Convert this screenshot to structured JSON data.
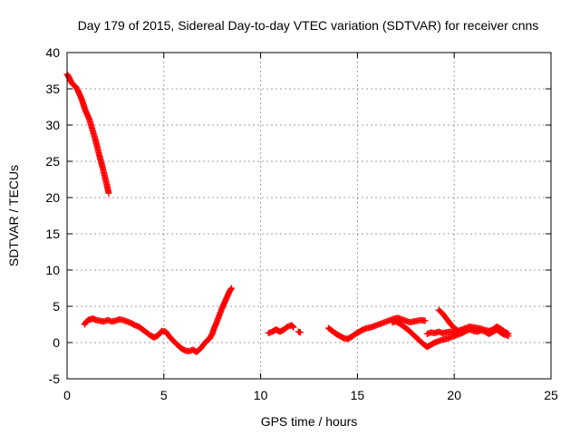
{
  "chart_data": {
    "type": "scatter",
    "title": "Day 179 of 2015, Sidereal Day-to-day VTEC variation (SDTVAR) for receiver cnns",
    "xlabel": "GPS time / hours",
    "ylabel": "SDTVAR / TECUs",
    "xlim": [
      0,
      25
    ],
    "ylim": [
      -5,
      40
    ],
    "xticks": [
      0,
      5,
      10,
      15,
      20,
      25
    ],
    "yticks": [
      -5,
      0,
      5,
      10,
      15,
      20,
      25,
      30,
      35,
      40
    ],
    "grid": true,
    "marker": "plus",
    "color": "#ff0000",
    "series": [
      {
        "name": "SDTVAR",
        "segments": [
          [
            [
              0.0,
              37.0
            ],
            [
              0.1,
              36.6
            ],
            [
              0.2,
              36.0
            ],
            [
              0.3,
              35.6
            ],
            [
              0.45,
              35.3
            ],
            [
              0.55,
              34.8
            ],
            [
              0.65,
              34.2
            ],
            [
              0.75,
              33.6
            ],
            [
              0.85,
              32.8
            ],
            [
              0.95,
              32.0
            ],
            [
              1.05,
              31.4
            ],
            [
              1.15,
              30.8
            ],
            [
              1.25,
              29.9
            ],
            [
              1.35,
              29.0
            ],
            [
              1.45,
              28.1
            ],
            [
              1.55,
              27.1
            ],
            [
              1.65,
              26.0
            ],
            [
              1.75,
              25.0
            ],
            [
              1.85,
              24.0
            ],
            [
              1.95,
              22.9
            ],
            [
              2.05,
              21.8
            ],
            [
              2.15,
              20.6
            ]
          ],
          [
            [
              0.9,
              2.5
            ],
            [
              1.0,
              2.9
            ],
            [
              1.1,
              3.1
            ],
            [
              1.2,
              3.2
            ],
            [
              1.35,
              3.3
            ],
            [
              1.5,
              3.1
            ],
            [
              1.7,
              3.0
            ],
            [
              1.9,
              2.9
            ],
            [
              2.1,
              3.1
            ],
            [
              2.3,
              2.9
            ],
            [
              2.5,
              3.0
            ],
            [
              2.7,
              3.2
            ],
            [
              2.9,
              3.1
            ],
            [
              3.1,
              2.9
            ],
            [
              3.3,
              2.7
            ],
            [
              3.5,
              2.4
            ],
            [
              3.7,
              2.2
            ],
            [
              3.9,
              1.8
            ],
            [
              4.1,
              1.4
            ],
            [
              4.3,
              1.0
            ],
            [
              4.5,
              0.7
            ],
            [
              4.7,
              1.0
            ],
            [
              4.9,
              1.6
            ],
            [
              5.1,
              1.5
            ],
            [
              5.3,
              0.8
            ],
            [
              5.5,
              0.2
            ],
            [
              5.7,
              -0.3
            ],
            [
              5.9,
              -0.8
            ],
            [
              6.1,
              -1.1
            ],
            [
              6.3,
              -1.2
            ],
            [
              6.5,
              -1.0
            ],
            [
              6.7,
              -1.3
            ],
            [
              6.9,
              -0.8
            ],
            [
              7.05,
              -0.3
            ],
            [
              7.2,
              0.2
            ],
            [
              7.35,
              0.5
            ],
            [
              7.5,
              1.2
            ],
            [
              7.6,
              2.0
            ],
            [
              7.7,
              2.6
            ],
            [
              7.8,
              3.3
            ],
            [
              7.9,
              4.0
            ],
            [
              8.0,
              4.7
            ],
            [
              8.1,
              5.3
            ],
            [
              8.2,
              5.9
            ],
            [
              8.3,
              6.5
            ],
            [
              8.4,
              7.1
            ],
            [
              8.5,
              7.5
            ]
          ],
          [
            [
              10.4,
              1.3
            ],
            [
              10.6,
              1.5
            ],
            [
              10.8,
              1.8
            ],
            [
              11.0,
              1.5
            ],
            [
              11.2,
              1.8
            ],
            [
              11.4,
              2.2
            ],
            [
              11.6,
              2.4
            ],
            [
              11.7,
              2.1
            ]
          ],
          [
            [
              11.95,
              1.5
            ],
            [
              12.05,
              1.4
            ]
          ],
          [
            [
              13.5,
              2.0
            ],
            [
              13.7,
              1.6
            ],
            [
              13.9,
              1.2
            ],
            [
              14.1,
              0.9
            ],
            [
              14.3,
              0.6
            ],
            [
              14.5,
              0.5
            ],
            [
              14.7,
              0.8
            ],
            [
              14.9,
              1.2
            ],
            [
              15.1,
              1.5
            ],
            [
              15.3,
              1.8
            ],
            [
              15.5,
              2.0
            ],
            [
              15.7,
              2.1
            ],
            [
              15.9,
              2.3
            ],
            [
              16.1,
              2.5
            ],
            [
              16.3,
              2.7
            ],
            [
              16.5,
              2.9
            ],
            [
              16.7,
              3.1
            ],
            [
              16.9,
              3.3
            ],
            [
              17.1,
              3.4
            ],
            [
              17.3,
              3.2
            ],
            [
              17.5,
              3.0
            ],
            [
              17.7,
              2.8
            ],
            [
              17.9,
              2.9
            ],
            [
              18.1,
              3.0
            ],
            [
              18.3,
              3.1
            ],
            [
              18.5,
              3.0
            ]
          ],
          [
            [
              16.8,
              2.8
            ],
            [
              17.0,
              2.9
            ],
            [
              17.2,
              2.6
            ],
            [
              17.4,
              2.2
            ],
            [
              17.6,
              1.8
            ],
            [
              17.8,
              1.3
            ],
            [
              18.0,
              0.8
            ],
            [
              18.2,
              0.3
            ],
            [
              18.4,
              -0.2
            ],
            [
              18.6,
              -0.6
            ],
            [
              18.8,
              -0.3
            ],
            [
              19.0,
              0.0
            ],
            [
              19.2,
              0.2
            ],
            [
              19.4,
              0.4
            ],
            [
              19.6,
              0.5
            ],
            [
              19.8,
              0.7
            ],
            [
              20.0,
              0.9
            ],
            [
              20.2,
              1.1
            ],
            [
              20.4,
              1.3
            ],
            [
              20.6,
              1.6
            ],
            [
              20.8,
              1.8
            ],
            [
              21.0,
              1.6
            ],
            [
              21.2,
              1.5
            ],
            [
              21.4,
              1.7
            ],
            [
              21.6,
              1.5
            ],
            [
              21.8,
              1.2
            ],
            [
              22.0,
              1.5
            ],
            [
              22.2,
              1.8
            ],
            [
              22.4,
              1.4
            ],
            [
              22.6,
              1.1
            ],
            [
              22.8,
              0.9
            ]
          ],
          [
            [
              19.2,
              4.5
            ],
            [
              19.4,
              4.0
            ],
            [
              19.6,
              3.3
            ],
            [
              19.8,
              2.6
            ],
            [
              20.0,
              2.0
            ],
            [
              20.2,
              1.6
            ],
            [
              20.4,
              1.8
            ],
            [
              20.6,
              2.0
            ],
            [
              20.8,
              2.2
            ],
            [
              21.0,
              2.1
            ],
            [
              21.2,
              2.0
            ],
            [
              21.4,
              1.9
            ],
            [
              21.6,
              1.7
            ],
            [
              21.8,
              1.6
            ],
            [
              22.0,
              1.8
            ],
            [
              22.2,
              2.2
            ],
            [
              22.4,
              1.9
            ],
            [
              22.6,
              1.5
            ],
            [
              22.8,
              1.2
            ]
          ],
          [
            [
              18.6,
              1.2
            ],
            [
              18.8,
              1.4
            ],
            [
              19.0,
              1.3
            ],
            [
              19.2,
              1.5
            ],
            [
              19.4,
              1.3
            ],
            [
              19.6,
              1.4
            ],
            [
              19.8,
              1.5
            ],
            [
              20.0,
              1.3
            ]
          ]
        ]
      }
    ]
  }
}
